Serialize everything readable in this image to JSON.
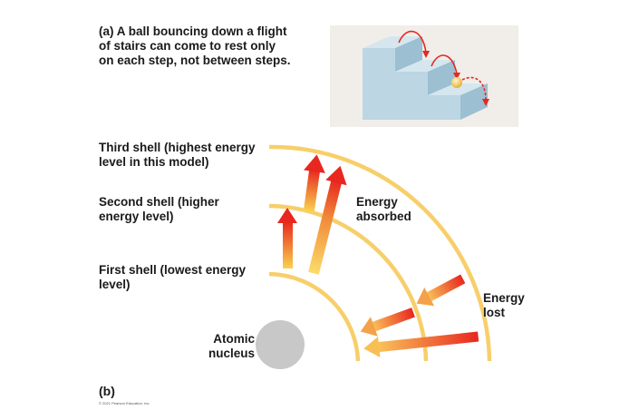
{
  "part_a": {
    "label": "(a) A ball bouncing down a flight\n      of stairs can come to rest only\n      on each step, not between steps."
  },
  "part_b": {
    "label": "(b)",
    "third_shell": "Third shell (highest energy\nlevel in this model)",
    "second_shell": "Second shell (higher\nenergy level)",
    "first_shell": "First shell (lowest energy\nlevel)",
    "energy_absorbed": "Energy\nabsorbed",
    "energy_lost": "Energy\nlost",
    "nucleus": "Atomic\nnucleus"
  },
  "copyright": "© 2021 Pearson Education, Inc.",
  "colors": {
    "shell": "#f7cf6a",
    "arrow_red": "#e8271f",
    "arrow_yellow": "#f9d24f",
    "nucleus": "#c8c8c8",
    "stair_face": "#bcd6e3",
    "stair_top": "#d6e6ee",
    "stair_side": "#9cbfd1",
    "panel_bg": "#f1eeea",
    "ball": "#f2c24d"
  }
}
